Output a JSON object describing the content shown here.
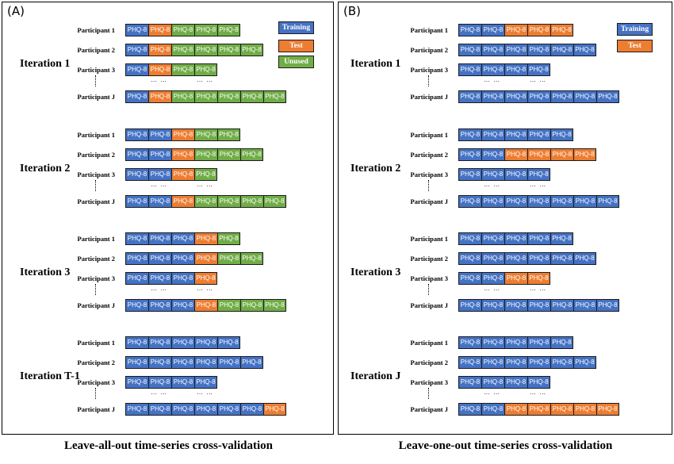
{
  "cell_label": "PHQ-8",
  "ellipsis_text": "… …",
  "colors": {
    "training": "#4472c4",
    "test": "#ed7d31",
    "unused": "#70ad47"
  },
  "legend": {
    "training": "Training",
    "test": "Test",
    "unused": "Unused"
  },
  "participants": [
    "Participant 1",
    "Participant 2",
    "Participant 3",
    "Participant J"
  ],
  "panels": [
    {
      "tag": "(A)",
      "caption": "Leave-all-out time-series cross-validation",
      "iterations": [
        {
          "label": "Iteration 1",
          "rows": [
            [
              "training",
              "test",
              "unused",
              "unused",
              "unused"
            ],
            [
              "training",
              "test",
              "unused",
              "unused",
              "unused",
              "unused"
            ],
            [
              "training",
              "test",
              "unused",
              "unused"
            ],
            [
              "training",
              "test",
              "unused",
              "unused",
              "unused",
              "unused",
              "unused"
            ]
          ]
        },
        {
          "label": "Iteration 2",
          "rows": [
            [
              "training",
              "training",
              "test",
              "unused",
              "unused"
            ],
            [
              "training",
              "training",
              "test",
              "unused",
              "unused",
              "unused"
            ],
            [
              "training",
              "training",
              "test",
              "unused"
            ],
            [
              "training",
              "training",
              "test",
              "unused",
              "unused",
              "unused",
              "unused"
            ]
          ]
        },
        {
          "label": "Iteration 3",
          "rows": [
            [
              "training",
              "training",
              "training",
              "test",
              "unused"
            ],
            [
              "training",
              "training",
              "training",
              "test",
              "unused",
              "unused"
            ],
            [
              "training",
              "training",
              "training",
              "test"
            ],
            [
              "training",
              "training",
              "training",
              "test",
              "unused",
              "unused",
              "unused"
            ]
          ]
        },
        {
          "label": "Iteration T-1",
          "rows": [
            [
              "training",
              "training",
              "training",
              "training",
              "training"
            ],
            [
              "training",
              "training",
              "training",
              "training",
              "training",
              "training"
            ],
            [
              "training",
              "training",
              "training",
              "training"
            ],
            [
              "training",
              "training",
              "training",
              "training",
              "training",
              "training",
              "test"
            ]
          ]
        }
      ]
    },
    {
      "tag": "(B)",
      "caption": "Leave-one-out time-series cross-validation",
      "iterations": [
        {
          "label": "Iteration 1",
          "rows": [
            [
              "training",
              "training",
              "test",
              "test",
              "test"
            ],
            [
              "training",
              "training",
              "training",
              "training",
              "training",
              "training"
            ],
            [
              "training",
              "training",
              "training",
              "training"
            ],
            [
              "training",
              "training",
              "training",
              "training",
              "training",
              "training",
              "training"
            ]
          ]
        },
        {
          "label": "Iteration 2",
          "rows": [
            [
              "training",
              "training",
              "training",
              "training",
              "training"
            ],
            [
              "training",
              "training",
              "test",
              "test",
              "test",
              "test"
            ],
            [
              "training",
              "training",
              "training",
              "training"
            ],
            [
              "training",
              "training",
              "training",
              "training",
              "training",
              "training",
              "training"
            ]
          ]
        },
        {
          "label": "Iteration 3",
          "rows": [
            [
              "training",
              "training",
              "training",
              "training",
              "training"
            ],
            [
              "training",
              "training",
              "training",
              "training",
              "training",
              "training"
            ],
            [
              "training",
              "training",
              "test",
              "test"
            ],
            [
              "training",
              "training",
              "training",
              "training",
              "training",
              "training",
              "training"
            ]
          ]
        },
        {
          "label": "Iteration J",
          "rows": [
            [
              "training",
              "training",
              "training",
              "training",
              "training"
            ],
            [
              "training",
              "training",
              "training",
              "training",
              "training",
              "training"
            ],
            [
              "training",
              "training",
              "training",
              "training"
            ],
            [
              "training",
              "training",
              "test",
              "test",
              "test",
              "test",
              "test"
            ]
          ]
        }
      ]
    }
  ]
}
